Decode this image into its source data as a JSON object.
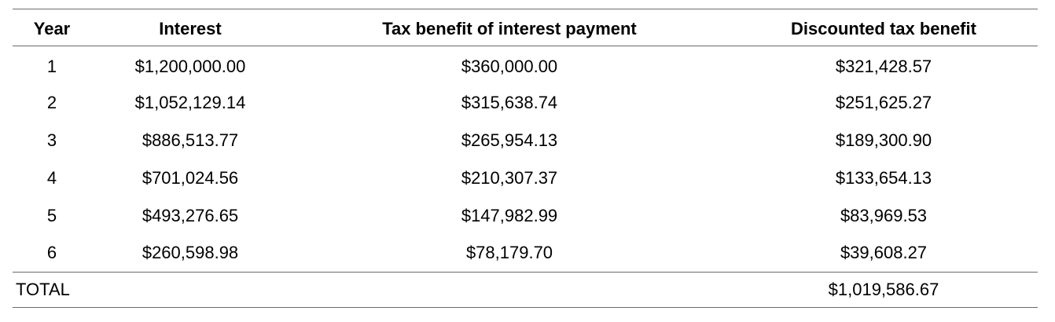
{
  "table": {
    "headers": {
      "year": "Year",
      "interest": "Interest",
      "tax_benefit": "Tax benefit of interest payment",
      "discounted": "Discounted tax benefit"
    },
    "rows": [
      {
        "year": "1",
        "interest": "$1,200,000.00",
        "tax_benefit": "$360,000.00",
        "discounted": "$321,428.57"
      },
      {
        "year": "2",
        "interest": "$1,052,129.14",
        "tax_benefit": "$315,638.74",
        "discounted": "$251,625.27"
      },
      {
        "year": "3",
        "interest": "$886,513.77",
        "tax_benefit": "$265,954.13",
        "discounted": "$189,300.90"
      },
      {
        "year": "4",
        "interest": "$701,024.56",
        "tax_benefit": "$210,307.37",
        "discounted": "$133,654.13"
      },
      {
        "year": "5",
        "interest": "$493,276.65",
        "tax_benefit": "$147,982.99",
        "discounted": "$83,969.53"
      },
      {
        "year": "6",
        "interest": "$260,598.98",
        "tax_benefit": "$78,179.70",
        "discounted": "$39,608.27"
      }
    ],
    "total": {
      "label": "TOTAL",
      "discounted": "$1,019,586.67"
    }
  }
}
